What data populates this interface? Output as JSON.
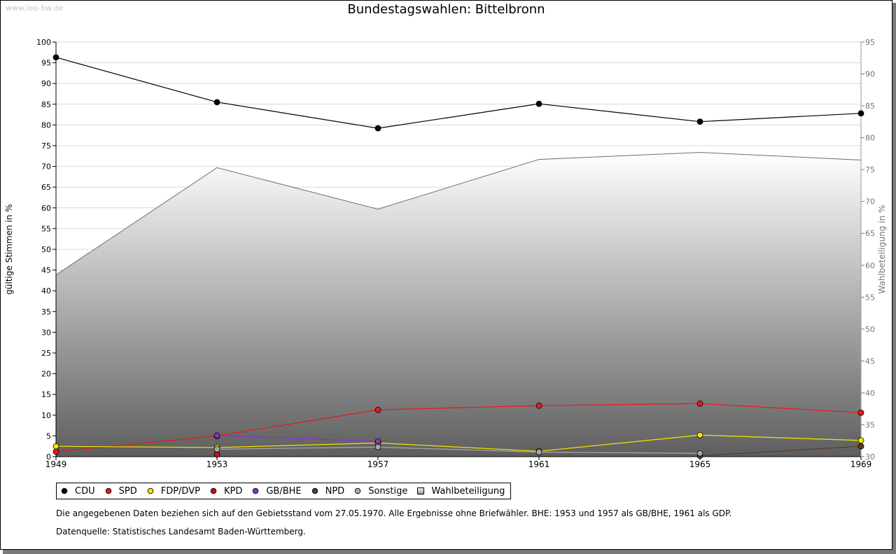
{
  "watermark": "www.leo-bw.de",
  "chart_data": {
    "type": "line",
    "title": "Bundestagswahlen: Bittelbronn",
    "ylabel": "gültige Stimmen in %",
    "y2label": "Wahlbeteiligung in %",
    "x": [
      "1949",
      "1953",
      "1957",
      "1961",
      "1965",
      "1969"
    ],
    "ylim": [
      0,
      100
    ],
    "y2lim": [
      30,
      95
    ],
    "yticks": [
      "0",
      "5",
      "10",
      "15",
      "20",
      "25",
      "30",
      "35",
      "40",
      "45",
      "50",
      "55",
      "60",
      "65",
      "70",
      "75",
      "80",
      "85",
      "90",
      "95",
      "100"
    ],
    "y2ticks": [
      "30",
      "35",
      "40",
      "45",
      "50",
      "55",
      "60",
      "65",
      "70",
      "75",
      "80",
      "85",
      "90",
      "95"
    ],
    "grid": true,
    "legend_position": "bottom",
    "series": [
      {
        "name": "CDU",
        "color": "#000000",
        "values": [
          96.3,
          85.5,
          79.2,
          85.1,
          80.8,
          82.8
        ]
      },
      {
        "name": "SPD",
        "color": "#e8191e",
        "values": [
          1.2,
          5.0,
          11.3,
          12.3,
          12.8,
          10.6
        ]
      },
      {
        "name": "FDP/DVP",
        "color": "#f2e600",
        "values": [
          2.5,
          2.2,
          3.3,
          1.3,
          5.2,
          3.9
        ]
      },
      {
        "name": "KPD",
        "color": "#d10a10",
        "values": [
          null,
          0.5,
          null,
          null,
          null,
          null
        ]
      },
      {
        "name": "GB/BHE",
        "color": "#8b32c8",
        "values": [
          null,
          5.1,
          3.7,
          null,
          null,
          null
        ]
      },
      {
        "name": "NPD",
        "color": "#5a3c28",
        "values": [
          null,
          null,
          null,
          null,
          0.2,
          2.5
        ]
      },
      {
        "name": "Sonstige",
        "color": "#a8a8a8",
        "values": [
          null,
          1.8,
          2.3,
          1.1,
          0.8,
          null
        ]
      }
    ],
    "area": {
      "name": "Wahlbeteiligung",
      "axis": "right",
      "values": [
        58.5,
        75.3,
        68.8,
        76.6,
        77.7,
        76.5
      ]
    }
  },
  "notes": {
    "line1": "Die angegebenen Daten beziehen sich auf den Gebietsstand vom 27.05.1970. Alle Ergebnisse ohne Briefwähler. BHE: 1953 und 1957 als GB/BHE, 1961 als GDP.",
    "line2": "Datenquelle: Statistisches Landesamt Baden-Württemberg."
  }
}
